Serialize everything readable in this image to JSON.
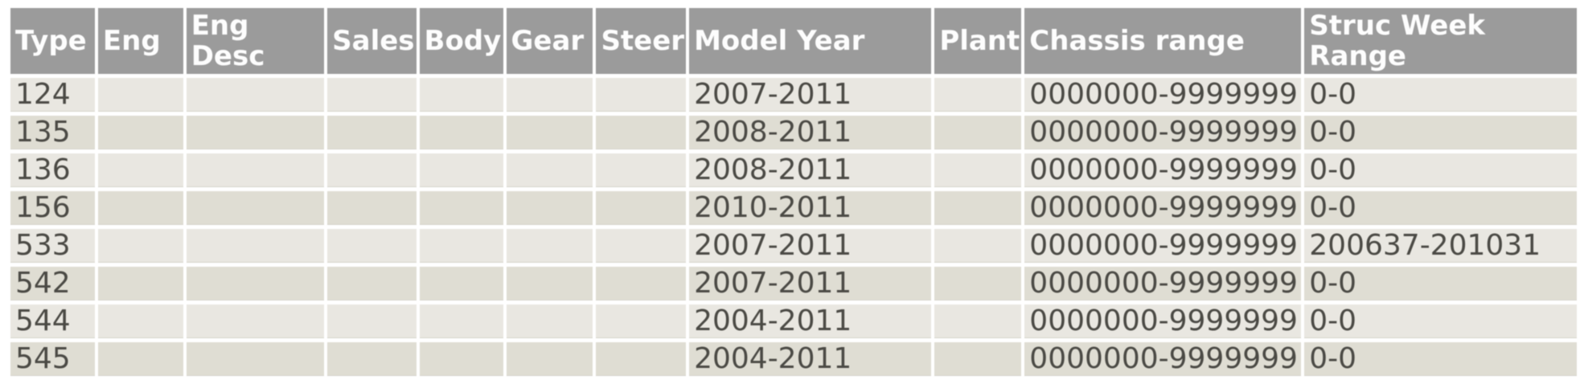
{
  "colors": {
    "header_bg": "#9b9b9b",
    "header_text": "#fdfdfd",
    "row_light": "#e9e7e1",
    "row_dark": "#dfddd3",
    "body_text": "#4b4a45",
    "gap": "#ffffff"
  },
  "table": {
    "columns": [
      {
        "key": "type",
        "label": "Type"
      },
      {
        "key": "eng",
        "label": "Eng"
      },
      {
        "key": "eng_desc",
        "label": "Eng Desc"
      },
      {
        "key": "sales",
        "label": "Sales"
      },
      {
        "key": "body",
        "label": "Body"
      },
      {
        "key": "gear",
        "label": "Gear"
      },
      {
        "key": "steer",
        "label": "Steer"
      },
      {
        "key": "model_year",
        "label": "Model Year"
      },
      {
        "key": "plant",
        "label": "Plant"
      },
      {
        "key": "chassis_range",
        "label": "Chassis range"
      },
      {
        "key": "struc_week_range",
        "label": "Struc Week Range"
      }
    ],
    "rows": [
      {
        "type": "124",
        "eng": "",
        "eng_desc": "",
        "sales": "",
        "body": "",
        "gear": "",
        "steer": "",
        "model_year": "2007-2011",
        "plant": "",
        "chassis_range": "0000000-9999999",
        "struc_week_range": "0-0"
      },
      {
        "type": "135",
        "eng": "",
        "eng_desc": "",
        "sales": "",
        "body": "",
        "gear": "",
        "steer": "",
        "model_year": "2008-2011",
        "plant": "",
        "chassis_range": "0000000-9999999",
        "struc_week_range": "0-0"
      },
      {
        "type": "136",
        "eng": "",
        "eng_desc": "",
        "sales": "",
        "body": "",
        "gear": "",
        "steer": "",
        "model_year": "2008-2011",
        "plant": "",
        "chassis_range": "0000000-9999999",
        "struc_week_range": "0-0"
      },
      {
        "type": "156",
        "eng": "",
        "eng_desc": "",
        "sales": "",
        "body": "",
        "gear": "",
        "steer": "",
        "model_year": "2010-2011",
        "plant": "",
        "chassis_range": "0000000-9999999",
        "struc_week_range": "0-0"
      },
      {
        "type": "533",
        "eng": "",
        "eng_desc": "",
        "sales": "",
        "body": "",
        "gear": "",
        "steer": "",
        "model_year": "2007-2011",
        "plant": "",
        "chassis_range": "0000000-9999999",
        "struc_week_range": "200637-201031"
      },
      {
        "type": "542",
        "eng": "",
        "eng_desc": "",
        "sales": "",
        "body": "",
        "gear": "",
        "steer": "",
        "model_year": "2007-2011",
        "plant": "",
        "chassis_range": "0000000-9999999",
        "struc_week_range": "0-0"
      },
      {
        "type": "544",
        "eng": "",
        "eng_desc": "",
        "sales": "",
        "body": "",
        "gear": "",
        "steer": "",
        "model_year": "2004-2011",
        "plant": "",
        "chassis_range": "0000000-9999999",
        "struc_week_range": "0-0"
      },
      {
        "type": "545",
        "eng": "",
        "eng_desc": "",
        "sales": "",
        "body": "",
        "gear": "",
        "steer": "",
        "model_year": "2004-2011",
        "plant": "",
        "chassis_range": "0000000-9999999",
        "struc_week_range": "0-0"
      }
    ]
  }
}
